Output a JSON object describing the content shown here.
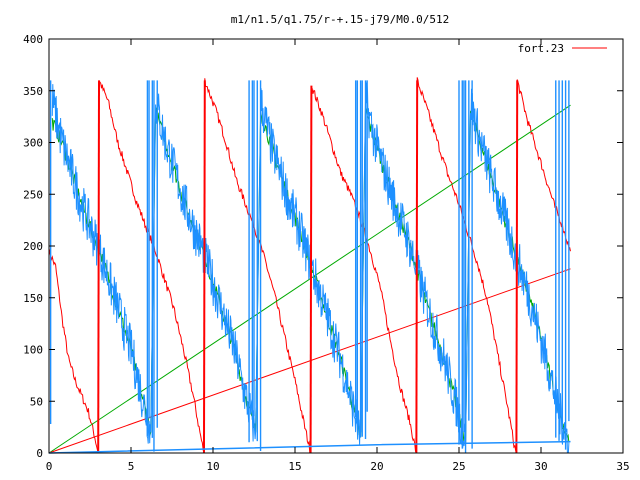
{
  "chart_data": {
    "type": "line",
    "title": "m1/n1.5/q1.75/r-+.15-j79/M0.0/512",
    "xlabel": "",
    "ylabel": "",
    "xlim": [
      0,
      35
    ],
    "ylim": [
      0,
      400
    ],
    "xticks": [
      0,
      5,
      10,
      15,
      20,
      25,
      30,
      35
    ],
    "yticks": [
      0,
      50,
      100,
      150,
      200,
      250,
      300,
      350,
      400
    ],
    "xtick_labels": [
      "0",
      "5",
      "10",
      "15",
      "20",
      "25",
      "30",
      "35"
    ],
    "ytick_labels": [
      "0",
      "50",
      "100",
      "150",
      "200",
      "250",
      "300",
      "350",
      "400"
    ],
    "grid": false,
    "legend": "top-right",
    "series": [
      {
        "name": "fort.23",
        "color": "#ff0000",
        "kind": "sawtooth",
        "points": [
          [
            0.0,
            195
          ],
          [
            0.4,
            180
          ],
          [
            0.8,
            130
          ],
          [
            1.2,
            90
          ],
          [
            1.6,
            70
          ],
          [
            2.0,
            55
          ],
          [
            2.4,
            40
          ],
          [
            2.8,
            15
          ],
          [
            3.0,
            0
          ],
          [
            3.05,
            360
          ],
          [
            3.6,
            340
          ],
          [
            4.2,
            300
          ],
          [
            4.8,
            270
          ],
          [
            5.4,
            240
          ],
          [
            6.0,
            215
          ],
          [
            6.5,
            195
          ],
          [
            7.0,
            170
          ],
          [
            7.6,
            140
          ],
          [
            8.2,
            100
          ],
          [
            8.8,
            55
          ],
          [
            9.2,
            20
          ],
          [
            9.45,
            0
          ],
          [
            9.5,
            360
          ],
          [
            10.2,
            330
          ],
          [
            10.8,
            300
          ],
          [
            11.4,
            265
          ],
          [
            12.0,
            240
          ],
          [
            12.6,
            215
          ],
          [
            13.2,
            185
          ],
          [
            13.8,
            150
          ],
          [
            14.4,
            110
          ],
          [
            15.0,
            70
          ],
          [
            15.6,
            25
          ],
          [
            15.95,
            0
          ],
          [
            16.0,
            355
          ],
          [
            16.6,
            330
          ],
          [
            17.2,
            300
          ],
          [
            17.8,
            270
          ],
          [
            18.4,
            250
          ],
          [
            19.0,
            225
          ],
          [
            19.6,
            195
          ],
          [
            20.2,
            160
          ],
          [
            20.8,
            110
          ],
          [
            21.4,
            65
          ],
          [
            22.0,
            30
          ],
          [
            22.4,
            0
          ],
          [
            22.45,
            360
          ],
          [
            23.1,
            330
          ],
          [
            23.7,
            300
          ],
          [
            24.3,
            270
          ],
          [
            24.9,
            245
          ],
          [
            25.5,
            215
          ],
          [
            26.1,
            185
          ],
          [
            26.7,
            150
          ],
          [
            27.3,
            100
          ],
          [
            27.9,
            50
          ],
          [
            28.4,
            5
          ],
          [
            28.5,
            0
          ],
          [
            28.55,
            360
          ],
          [
            29.2,
            320
          ],
          [
            29.8,
            290
          ],
          [
            30.3,
            265
          ],
          [
            30.8,
            240
          ],
          [
            31.3,
            220
          ],
          [
            31.6,
            205
          ],
          [
            31.8,
            195
          ]
        ]
      },
      {
        "name": "",
        "color": "#00aa00",
        "kind": "line",
        "points": [
          [
            0,
            0
          ],
          [
            31.8,
            336
          ]
        ]
      },
      {
        "name": "",
        "color": "#ff0000",
        "kind": "line",
        "points": [
          [
            0,
            0
          ],
          [
            31.8,
            178
          ]
        ]
      },
      {
        "name": "",
        "color": "#00aa00",
        "kind": "sawtooth",
        "points": [
          [
            0.2,
            320
          ],
          [
            0.8,
            300
          ],
          [
            1.4,
            270
          ],
          [
            2.0,
            240
          ],
          [
            2.6,
            215
          ],
          [
            3.2,
            190
          ],
          [
            3.8,
            160
          ],
          [
            4.4,
            130
          ],
          [
            5.0,
            100
          ],
          [
            5.6,
            60
          ],
          [
            6.2,
            20
          ],
          [
            6.5,
            330
          ],
          [
            7.1,
            300
          ],
          [
            7.7,
            270
          ],
          [
            8.3,
            240
          ],
          [
            8.9,
            215
          ],
          [
            9.5,
            190
          ],
          [
            10.1,
            160
          ],
          [
            10.7,
            130
          ],
          [
            11.3,
            100
          ],
          [
            11.9,
            60
          ],
          [
            12.6,
            20
          ],
          [
            12.9,
            330
          ],
          [
            13.5,
            300
          ],
          [
            14.1,
            270
          ],
          [
            14.7,
            240
          ],
          [
            15.3,
            215
          ],
          [
            15.9,
            185
          ],
          [
            16.5,
            155
          ],
          [
            17.1,
            125
          ],
          [
            17.7,
            95
          ],
          [
            18.3,
            60
          ],
          [
            19.0,
            15
          ],
          [
            19.3,
            330
          ],
          [
            19.9,
            300
          ],
          [
            20.5,
            270
          ],
          [
            21.1,
            240
          ],
          [
            21.7,
            215
          ],
          [
            22.3,
            185
          ],
          [
            22.9,
            150
          ],
          [
            23.5,
            120
          ],
          [
            24.1,
            90
          ],
          [
            24.7,
            55
          ],
          [
            25.4,
            10
          ],
          [
            25.7,
            330
          ],
          [
            26.3,
            300
          ],
          [
            26.9,
            270
          ],
          [
            27.5,
            240
          ],
          [
            28.1,
            210
          ],
          [
            28.7,
            180
          ],
          [
            29.3,
            150
          ],
          [
            29.9,
            115
          ],
          [
            30.5,
            80
          ],
          [
            31.1,
            40
          ],
          [
            31.7,
            10
          ]
        ]
      },
      {
        "name": "",
        "color": "#1e90ff",
        "kind": "noisy-sawtooth",
        "points": [
          [
            0.2,
            340
          ],
          [
            0.8,
            300
          ],
          [
            1.4,
            270
          ],
          [
            2.0,
            240
          ],
          [
            2.6,
            215
          ],
          [
            3.2,
            190
          ],
          [
            3.8,
            160
          ],
          [
            4.4,
            130
          ],
          [
            5.0,
            100
          ],
          [
            5.6,
            60
          ],
          [
            6.2,
            20
          ],
          [
            6.5,
            340
          ],
          [
            7.1,
            300
          ],
          [
            7.7,
            270
          ],
          [
            8.3,
            240
          ],
          [
            8.9,
            215
          ],
          [
            9.5,
            190
          ],
          [
            10.1,
            160
          ],
          [
            10.7,
            130
          ],
          [
            11.3,
            100
          ],
          [
            11.9,
            60
          ],
          [
            12.6,
            20
          ],
          [
            12.9,
            340
          ],
          [
            13.5,
            300
          ],
          [
            14.1,
            270
          ],
          [
            14.7,
            240
          ],
          [
            15.3,
            215
          ],
          [
            15.9,
            185
          ],
          [
            16.5,
            155
          ],
          [
            17.1,
            125
          ],
          [
            17.7,
            95
          ],
          [
            18.3,
            60
          ],
          [
            19.0,
            15
          ],
          [
            19.3,
            340
          ],
          [
            19.9,
            300
          ],
          [
            20.5,
            270
          ],
          [
            21.1,
            240
          ],
          [
            21.7,
            215
          ],
          [
            22.3,
            185
          ],
          [
            22.9,
            150
          ],
          [
            23.5,
            120
          ],
          [
            24.1,
            90
          ],
          [
            24.7,
            55
          ],
          [
            25.4,
            10
          ],
          [
            25.7,
            340
          ],
          [
            26.3,
            300
          ],
          [
            26.9,
            270
          ],
          [
            27.5,
            240
          ],
          [
            28.1,
            210
          ],
          [
            28.7,
            180
          ],
          [
            29.3,
            150
          ],
          [
            29.9,
            115
          ],
          [
            30.5,
            80
          ],
          [
            31.1,
            40
          ],
          [
            31.7,
            10
          ]
        ]
      },
      {
        "name": "",
        "color": "#1e90ff",
        "kind": "line",
        "points": [
          [
            0,
            0
          ],
          [
            10,
            4
          ],
          [
            20,
            8
          ],
          [
            31.8,
            11
          ]
        ]
      }
    ],
    "spikes": {
      "color": "#1e90ff",
      "ymax": 360,
      "x": [
        0.1,
        6.0,
        6.1,
        6.3,
        6.4,
        6.6,
        12.2,
        12.4,
        12.5,
        12.7,
        12.9,
        18.7,
        18.8,
        19.0,
        19.1,
        19.3,
        19.4,
        25.0,
        25.2,
        25.3,
        25.4,
        25.6,
        25.8,
        30.9,
        31.1,
        31.3,
        31.5,
        31.7
      ]
    }
  }
}
